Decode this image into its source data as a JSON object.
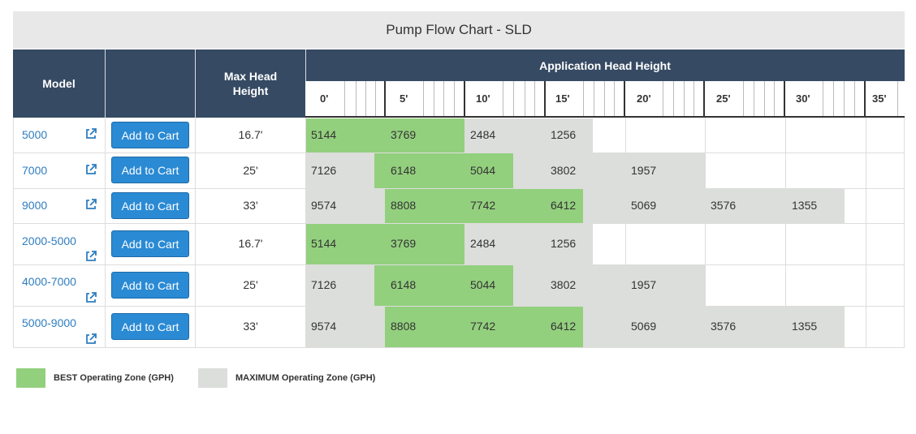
{
  "title": "Pump Flow Chart - SLD",
  "header": {
    "model": "Model",
    "max_head": "Max Head Height",
    "application": "Application Head Height",
    "ticks": [
      "0'",
      "5'",
      "10'",
      "15'",
      "20'",
      "25'",
      "30'",
      "35'"
    ]
  },
  "colors": {
    "best": "#93d07e",
    "maximum": "#dcdedb",
    "header": "#364a63",
    "link": "#2f7dbf",
    "button": "#2a8ad4"
  },
  "rows": [
    {
      "model": "5000",
      "cart": "Add to Cart",
      "max_head": "16.7'",
      "flows": [
        "5144",
        "3769",
        "2484",
        "1256"
      ]
    },
    {
      "model": "7000",
      "cart": "Add to Cart",
      "max_head": "25'",
      "flows": [
        "7126",
        "6148",
        "5044",
        "3802",
        "1957"
      ]
    },
    {
      "model": "9000",
      "cart": "Add to Cart",
      "max_head": "33'",
      "flows": [
        "9574",
        "8808",
        "7742",
        "6412",
        "5069",
        "3576",
        "1355"
      ]
    },
    {
      "model": "2000-5000",
      "cart": "Add to Cart",
      "max_head": "16.7'",
      "flows": [
        "5144",
        "3769",
        "2484",
        "1256"
      ]
    },
    {
      "model": "4000-7000",
      "cart": "Add to Cart",
      "max_head": "25'",
      "flows": [
        "7126",
        "6148",
        "5044",
        "3802",
        "1957"
      ]
    },
    {
      "model": "5000-9000",
      "cart": "Add to Cart",
      "max_head": "33'",
      "flows": [
        "9574",
        "8808",
        "7742",
        "6412",
        "5069",
        "3576",
        "1355"
      ]
    }
  ],
  "legend": {
    "best": "BEST Operating Zone (GPH)",
    "maximum": "MAXIMUM Operating Zone (GPH)"
  }
}
